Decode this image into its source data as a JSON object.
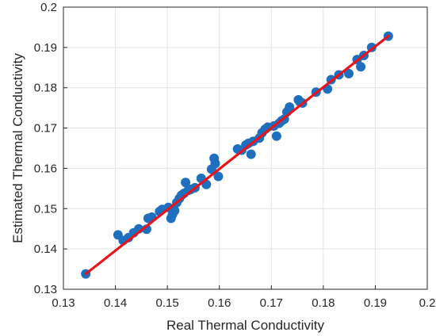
{
  "chart_data": {
    "type": "scatter",
    "xlabel": "Real Thermal Conductivity",
    "ylabel": "Estimated Thermal Conductivity",
    "xlim": [
      0.13,
      0.2
    ],
    "ylim": [
      0.13,
      0.2
    ],
    "xticks": [
      "0.13",
      "0.14",
      "0.15",
      "0.16",
      "0.17",
      "0.18",
      "0.19",
      "0.2"
    ],
    "yticks": [
      "0.13",
      "0.14",
      "0.15",
      "0.16",
      "0.17",
      "0.18",
      "0.19",
      "0.2"
    ],
    "grid": true,
    "colors": {
      "points": "#1f6fbf",
      "fit_line": "#e8141b"
    },
    "series": [
      {
        "values": [
          [
            0.1343,
            0.1338
          ],
          [
            0.1405,
            0.1435
          ],
          [
            0.1415,
            0.1421
          ],
          [
            0.1425,
            0.1428
          ],
          [
            0.1435,
            0.144
          ],
          [
            0.1445,
            0.145
          ],
          [
            0.146,
            0.1449
          ],
          [
            0.1463,
            0.1476
          ],
          [
            0.147,
            0.1479
          ],
          [
            0.1485,
            0.1493
          ],
          [
            0.149,
            0.1498
          ],
          [
            0.1502,
            0.1503
          ],
          [
            0.1507,
            0.1476
          ],
          [
            0.151,
            0.1486
          ],
          [
            0.1514,
            0.1495
          ],
          [
            0.1518,
            0.1515
          ],
          [
            0.1523,
            0.1525
          ],
          [
            0.1527,
            0.1533
          ],
          [
            0.1532,
            0.1538
          ],
          [
            0.1535,
            0.1565
          ],
          [
            0.154,
            0.1545
          ],
          [
            0.1545,
            0.1548
          ],
          [
            0.1553,
            0.1552
          ],
          [
            0.1565,
            0.1575
          ],
          [
            0.1575,
            0.156
          ],
          [
            0.1585,
            0.1598
          ],
          [
            0.159,
            0.1625
          ],
          [
            0.1592,
            0.1612
          ],
          [
            0.1598,
            0.158
          ],
          [
            0.1635,
            0.1648
          ],
          [
            0.1643,
            0.1645
          ],
          [
            0.1651,
            0.1658
          ],
          [
            0.1656,
            0.1662
          ],
          [
            0.1661,
            0.1635
          ],
          [
            0.1665,
            0.1667
          ],
          [
            0.1677,
            0.1675
          ],
          [
            0.1682,
            0.1688
          ],
          [
            0.1688,
            0.1697
          ],
          [
            0.1693,
            0.1702
          ],
          [
            0.1705,
            0.1705
          ],
          [
            0.171,
            0.168
          ],
          [
            0.1715,
            0.1712
          ],
          [
            0.172,
            0.1718
          ],
          [
            0.1725,
            0.1722
          ],
          [
            0.173,
            0.174
          ],
          [
            0.1735,
            0.1752
          ],
          [
            0.1752,
            0.177
          ],
          [
            0.1755,
            0.1765
          ],
          [
            0.176,
            0.1762
          ],
          [
            0.1786,
            0.1789
          ],
          [
            0.1808,
            0.1797
          ],
          [
            0.1815,
            0.182
          ],
          [
            0.183,
            0.1832
          ],
          [
            0.1849,
            0.1835
          ],
          [
            0.1865,
            0.187
          ],
          [
            0.1872,
            0.1852
          ],
          [
            0.1878,
            0.188
          ],
          [
            0.1893,
            0.19
          ],
          [
            0.1925,
            0.1928
          ]
        ]
      },
      {
        "type": "line",
        "values": [
          [
            0.1343,
            0.1338
          ],
          [
            0.1925,
            0.1928
          ]
        ]
      }
    ]
  }
}
